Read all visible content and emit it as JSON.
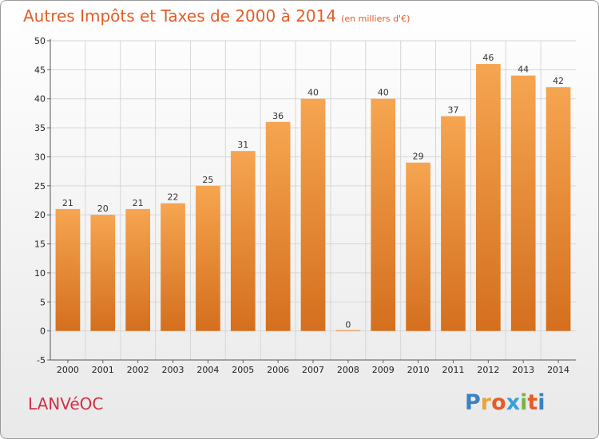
{
  "page": {
    "title": "Autres Impôts et Taxes de 2000 à 2014",
    "subtitle": "(en milliers d'€)",
    "commune": "LANVéOC",
    "logo_letters": [
      "P",
      "r",
      "o",
      "x",
      "i",
      "t",
      "i"
    ],
    "logo_colors": [
      "#3b82c4",
      "#e9a43a",
      "#e25d27",
      "#3aa0d8",
      "#7cb342",
      "#e25d27",
      "#3b82c4"
    ]
  },
  "chart_data": {
    "type": "bar",
    "title": "Autres Impôts et Taxes de 2000 à 2014",
    "subtitle": "(en milliers d'€)",
    "categories": [
      "2000",
      "2001",
      "2002",
      "2003",
      "2004",
      "2005",
      "2006",
      "2007",
      "2008",
      "2009",
      "2010",
      "2011",
      "2012",
      "2013",
      "2014"
    ],
    "values": [
      21,
      20,
      21,
      22,
      25,
      31,
      36,
      40,
      0,
      40,
      29,
      37,
      46,
      44,
      42
    ],
    "ylim": [
      -5,
      50
    ],
    "yticks": [
      -5,
      0,
      5,
      10,
      15,
      20,
      25,
      30,
      35,
      40,
      45,
      50
    ],
    "xlabel": "",
    "ylabel": "",
    "grid": true,
    "bar_color_top": "#f6a550",
    "bar_color_bottom": "#d46f1e",
    "legend": "none"
  }
}
